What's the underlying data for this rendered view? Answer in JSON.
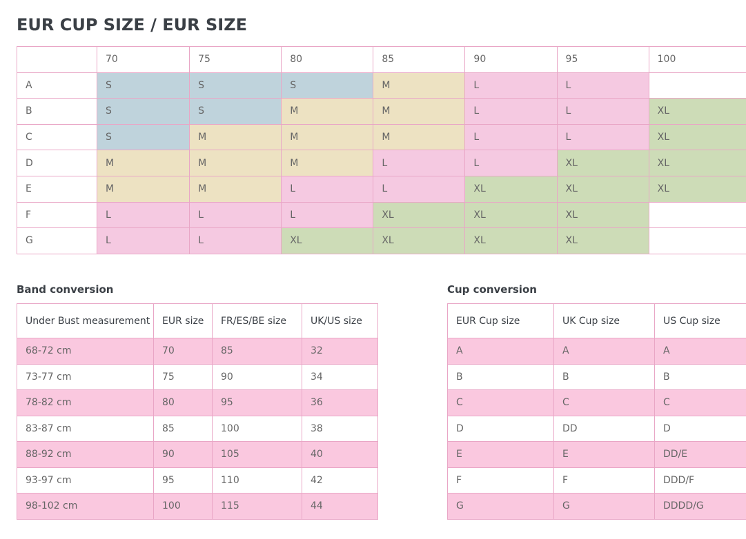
{
  "title": "EUR CUP SIZE / EUR SIZE",
  "size_chart": {
    "bands": [
      "70",
      "75",
      "80",
      "85",
      "90",
      "95",
      "100"
    ],
    "rows": [
      {
        "cup": "A",
        "sizes": [
          "S",
          "S",
          "S",
          "M",
          "L",
          "L",
          ""
        ]
      },
      {
        "cup": "B",
        "sizes": [
          "S",
          "S",
          "M",
          "M",
          "L",
          "L",
          "XL"
        ]
      },
      {
        "cup": "C",
        "sizes": [
          "S",
          "M",
          "M",
          "M",
          "L",
          "L",
          "XL"
        ]
      },
      {
        "cup": "D",
        "sizes": [
          "M",
          "M",
          "M",
          "L",
          "L",
          "XL",
          "XL"
        ]
      },
      {
        "cup": "E",
        "sizes": [
          "M",
          "M",
          "L",
          "L",
          "XL",
          "XL",
          "XL"
        ]
      },
      {
        "cup": "F",
        "sizes": [
          "L",
          "L",
          "L",
          "XL",
          "XL",
          "XL",
          ""
        ]
      },
      {
        "cup": "G",
        "sizes": [
          "L",
          "L",
          "XL",
          "XL",
          "XL",
          "XL",
          ""
        ]
      }
    ],
    "colors": {
      "S": "#bfd3dc",
      "M": "#ede2c2",
      "L": "#f5c9e1",
      "XL": "#cddcb7"
    }
  },
  "band_conversion": {
    "title": "Band conversion",
    "headers": [
      "Under Bust measurement",
      "EUR size",
      "FR/ES/BE size",
      "UK/US size"
    ],
    "rows": [
      [
        "68-72 cm",
        "70",
        "85",
        "32"
      ],
      [
        "73-77 cm",
        "75",
        "90",
        "34"
      ],
      [
        "78-82 cm",
        "80",
        "95",
        "36"
      ],
      [
        "83-87 cm",
        "85",
        "100",
        "38"
      ],
      [
        "88-92 cm",
        "90",
        "105",
        "40"
      ],
      [
        "93-97 cm",
        "95",
        "110",
        "42"
      ],
      [
        "98-102 cm",
        "100",
        "115",
        "44"
      ]
    ]
  },
  "cup_conversion": {
    "title": "Cup conversion",
    "headers": [
      "EUR Cup size",
      "UK Cup size",
      "US Cup size"
    ],
    "rows": [
      [
        "A",
        "A",
        "A"
      ],
      [
        "B",
        "B",
        "B"
      ],
      [
        "C",
        "C",
        "C"
      ],
      [
        "D",
        "DD",
        "D"
      ],
      [
        "E",
        "E",
        "DD/E"
      ],
      [
        "F",
        "F",
        "DDD/F"
      ],
      [
        "G",
        "G",
        "DDDD/G"
      ]
    ]
  },
  "stripe_color": "#fac8df"
}
